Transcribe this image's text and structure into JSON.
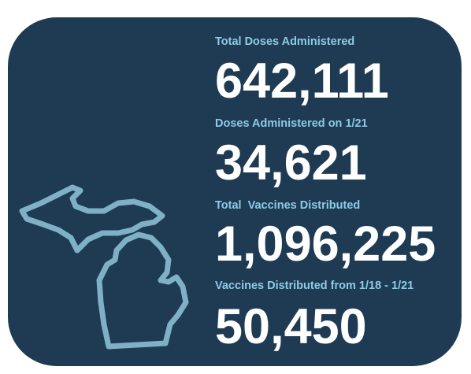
{
  "stats": [
    {
      "label": "Total Doses Administered",
      "value": "642,111"
    },
    {
      "label": "Doses Administered on 1/21",
      "value": "34,621"
    },
    {
      "label": "Total  Vaccines Distributed",
      "value": "1,096,225"
    },
    {
      "label": "Vaccines Distributed from 1/18 - 1/21",
      "value": "50,450"
    }
  ]
}
